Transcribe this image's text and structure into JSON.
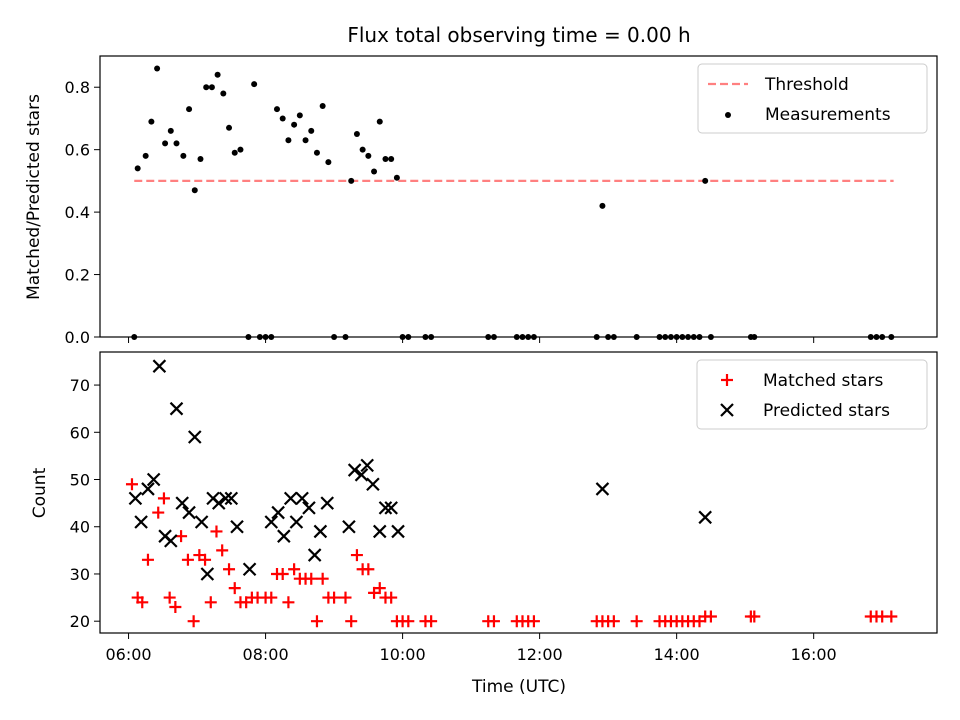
{
  "chart_data": {
    "title": "Flux total observing time = 0.00 h",
    "x_axis": {
      "label": "Time (UTC)",
      "type": "time",
      "range": [
        "05:35",
        "17:48"
      ],
      "tick_labels": [
        "06:00",
        "08:00",
        "10:00",
        "12:00",
        "14:00",
        "16:00"
      ]
    },
    "panels": [
      {
        "id": "ratio",
        "type": "scatter",
        "ylabel": "Matched/Predicted stars",
        "ylim": [
          0,
          0.9
        ],
        "yticks": [
          "0.0",
          "0.2",
          "0.4",
          "0.6",
          "0.8"
        ],
        "legend_position": "top-right",
        "threshold": {
          "name": "Threshold",
          "value": 0.5,
          "x": [
            "06:05",
            "17:10"
          ],
          "color": "#ff8080",
          "style": "dashed"
        },
        "series": [
          {
            "name": "Measurements",
            "color": "#000000",
            "marker": "dot",
            "points": [
              [
                "06:05",
                0.0
              ],
              [
                "06:08",
                0.54
              ],
              [
                "06:15",
                0.58
              ],
              [
                "06:20",
                0.69
              ],
              [
                "06:25",
                0.86
              ],
              [
                "06:32",
                0.62
              ],
              [
                "06:37",
                0.66
              ],
              [
                "06:42",
                0.62
              ],
              [
                "06:48",
                0.58
              ],
              [
                "06:53",
                0.73
              ],
              [
                "06:58",
                0.47
              ],
              [
                "07:03",
                0.57
              ],
              [
                "07:08",
                0.8
              ],
              [
                "07:13",
                0.8
              ],
              [
                "07:18",
                0.84
              ],
              [
                "07:23",
                0.78
              ],
              [
                "07:28",
                0.67
              ],
              [
                "07:33",
                0.59
              ],
              [
                "07:38",
                0.6
              ],
              [
                "07:50",
                0.81
              ],
              [
                "07:45",
                0.0
              ],
              [
                "07:55",
                0.0
              ],
              [
                "08:00",
                0.0
              ],
              [
                "08:05",
                0.0
              ],
              [
                "08:10",
                0.73
              ],
              [
                "08:15",
                0.7
              ],
              [
                "08:20",
                0.63
              ],
              [
                "08:25",
                0.68
              ],
              [
                "08:30",
                0.71
              ],
              [
                "08:35",
                0.63
              ],
              [
                "08:40",
                0.66
              ],
              [
                "08:45",
                0.59
              ],
              [
                "08:50",
                0.74
              ],
              [
                "08:55",
                0.56
              ],
              [
                "09:00",
                0.0
              ],
              [
                "09:10",
                0.0
              ],
              [
                "09:15",
                0.5
              ],
              [
                "09:20",
                0.65
              ],
              [
                "09:25",
                0.6
              ],
              [
                "09:30",
                0.58
              ],
              [
                "09:35",
                0.53
              ],
              [
                "09:40",
                0.69
              ],
              [
                "09:45",
                0.57
              ],
              [
                "09:50",
                0.57
              ],
              [
                "09:55",
                0.51
              ],
              [
                "10:00",
                0.0
              ],
              [
                "10:05",
                0.0
              ],
              [
                "10:20",
                0.0
              ],
              [
                "10:25",
                0.0
              ],
              [
                "11:15",
                0.0
              ],
              [
                "11:20",
                0.0
              ],
              [
                "11:40",
                0.0
              ],
              [
                "11:45",
                0.0
              ],
              [
                "11:50",
                0.0
              ],
              [
                "11:55",
                0.0
              ],
              [
                "12:50",
                0.0
              ],
              [
                "12:55",
                0.42
              ],
              [
                "13:00",
                0.0
              ],
              [
                "13:05",
                0.0
              ],
              [
                "13:25",
                0.0
              ],
              [
                "13:45",
                0.0
              ],
              [
                "13:50",
                0.0
              ],
              [
                "13:55",
                0.0
              ],
              [
                "14:00",
                0.0
              ],
              [
                "14:05",
                0.0
              ],
              [
                "14:10",
                0.0
              ],
              [
                "14:15",
                0.0
              ],
              [
                "14:20",
                0.0
              ],
              [
                "14:25",
                0.5
              ],
              [
                "14:30",
                0.0
              ],
              [
                "15:05",
                0.0
              ],
              [
                "15:08",
                0.0
              ],
              [
                "16:50",
                0.0
              ],
              [
                "16:55",
                0.0
              ],
              [
                "17:00",
                0.0
              ],
              [
                "17:08",
                0.0
              ]
            ]
          }
        ]
      },
      {
        "id": "count",
        "type": "scatter",
        "ylabel": "Count",
        "ylim": [
          17.5,
          77
        ],
        "yticks": [
          "20",
          "30",
          "40",
          "50",
          "60",
          "70"
        ],
        "legend_position": "top-right",
        "series": [
          {
            "name": "Matched stars",
            "color": "#ff0000",
            "marker": "plus",
            "points": [
              [
                "06:03",
                49
              ],
              [
                "06:08",
                25
              ],
              [
                "06:12",
                24
              ],
              [
                "06:17",
                33
              ],
              [
                "06:26",
                43
              ],
              [
                "06:31",
                46
              ],
              [
                "06:36",
                25
              ],
              [
                "06:41",
                23
              ],
              [
                "06:46",
                38
              ],
              [
                "06:52",
                33
              ],
              [
                "06:57",
                20
              ],
              [
                "07:02",
                34
              ],
              [
                "07:07",
                33
              ],
              [
                "07:12",
                24
              ],
              [
                "07:17",
                39
              ],
              [
                "07:22",
                35
              ],
              [
                "07:28",
                31
              ],
              [
                "07:33",
                27
              ],
              [
                "07:38",
                24
              ],
              [
                "07:43",
                24
              ],
              [
                "07:48",
                25
              ],
              [
                "07:53",
                25
              ],
              [
                "08:00",
                25
              ],
              [
                "08:05",
                25
              ],
              [
                "08:10",
                30
              ],
              [
                "08:15",
                30
              ],
              [
                "08:20",
                24
              ],
              [
                "08:25",
                31
              ],
              [
                "08:30",
                29
              ],
              [
                "08:35",
                29
              ],
              [
                "08:40",
                29
              ],
              [
                "08:45",
                20
              ],
              [
                "08:50",
                29
              ],
              [
                "08:55",
                25
              ],
              [
                "09:00",
                25
              ],
              [
                "09:10",
                25
              ],
              [
                "09:15",
                20
              ],
              [
                "09:20",
                34
              ],
              [
                "09:25",
                31
              ],
              [
                "09:30",
                31
              ],
              [
                "09:35",
                26
              ],
              [
                "09:40",
                27
              ],
              [
                "09:45",
                25
              ],
              [
                "09:50",
                25
              ],
              [
                "09:55",
                20
              ],
              [
                "10:00",
                20
              ],
              [
                "10:05",
                20
              ],
              [
                "10:20",
                20
              ],
              [
                "10:25",
                20
              ],
              [
                "11:15",
                20
              ],
              [
                "11:20",
                20
              ],
              [
                "11:40",
                20
              ],
              [
                "11:45",
                20
              ],
              [
                "11:50",
                20
              ],
              [
                "11:55",
                20
              ],
              [
                "12:50",
                20
              ],
              [
                "12:55",
                20
              ],
              [
                "13:00",
                20
              ],
              [
                "13:05",
                20
              ],
              [
                "13:25",
                20
              ],
              [
                "13:45",
                20
              ],
              [
                "13:50",
                20
              ],
              [
                "13:55",
                20
              ],
              [
                "14:00",
                20
              ],
              [
                "14:05",
                20
              ],
              [
                "14:10",
                20
              ],
              [
                "14:15",
                20
              ],
              [
                "14:20",
                20
              ],
              [
                "14:25",
                21
              ],
              [
                "14:30",
                21
              ],
              [
                "15:05",
                21
              ],
              [
                "15:08",
                21
              ],
              [
                "16:50",
                21
              ],
              [
                "16:55",
                21
              ],
              [
                "17:00",
                21
              ],
              [
                "17:08",
                21
              ]
            ]
          },
          {
            "name": "Predicted stars",
            "color": "#000000",
            "marker": "x",
            "points": [
              [
                "06:06",
                46
              ],
              [
                "06:11",
                41
              ],
              [
                "06:17",
                48
              ],
              [
                "06:22",
                50
              ],
              [
                "06:27",
                74
              ],
              [
                "06:32",
                38
              ],
              [
                "06:37",
                37
              ],
              [
                "06:42",
                65
              ],
              [
                "06:47",
                45
              ],
              [
                "06:53",
                43
              ],
              [
                "06:58",
                59
              ],
              [
                "07:04",
                41
              ],
              [
                "07:09",
                30
              ],
              [
                "07:14",
                46
              ],
              [
                "07:19",
                45
              ],
              [
                "07:25",
                46
              ],
              [
                "07:30",
                46
              ],
              [
                "07:35",
                40
              ],
              [
                "07:46",
                31
              ],
              [
                "08:05",
                41
              ],
              [
                "08:11",
                43
              ],
              [
                "08:16",
                38
              ],
              [
                "08:22",
                46
              ],
              [
                "08:27",
                41
              ],
              [
                "08:32",
                46
              ],
              [
                "08:38",
                44
              ],
              [
                "08:43",
                34
              ],
              [
                "08:48",
                39
              ],
              [
                "08:54",
                45
              ],
              [
                "09:13",
                40
              ],
              [
                "09:18",
                52
              ],
              [
                "09:24",
                51
              ],
              [
                "09:29",
                53
              ],
              [
                "09:34",
                49
              ],
              [
                "09:40",
                39
              ],
              [
                "09:45",
                44
              ],
              [
                "09:50",
                44
              ],
              [
                "09:56",
                39
              ],
              [
                "12:55",
                48
              ],
              [
                "14:25",
                42
              ]
            ]
          }
        ]
      }
    ]
  }
}
